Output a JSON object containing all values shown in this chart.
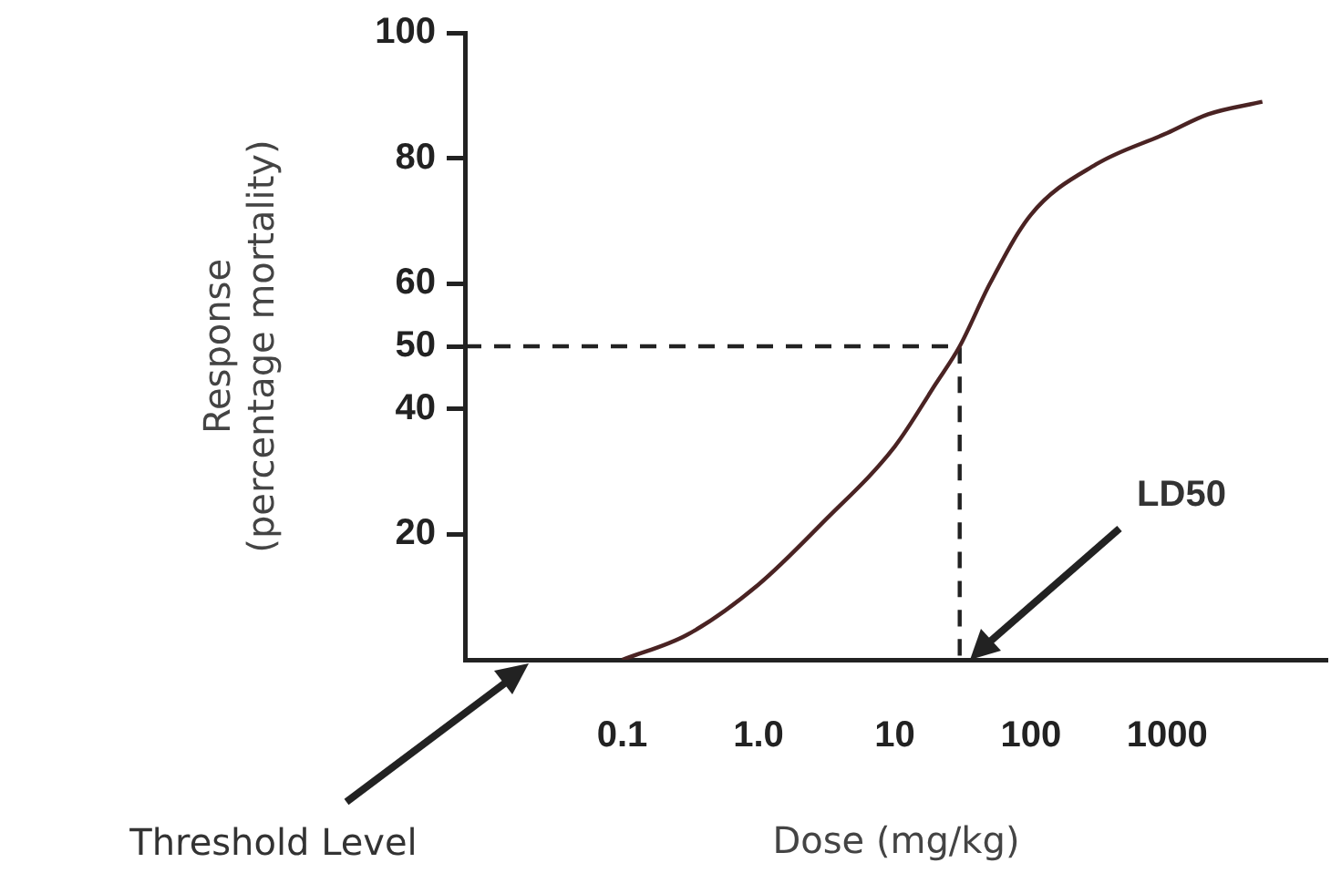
{
  "chart_data": {
    "type": "line",
    "xlabel": "Dose (mg/kg)",
    "ylabel": "Response\n(percentage mortality)",
    "log": "x",
    "grid": false,
    "legend": false,
    "marker": "none",
    "xlim": [
      0.007,
      15000
    ],
    "xticks": [
      0.1,
      {
        "value": 1,
        "label": "1.0"
      },
      10,
      100,
      1000
    ],
    "ylim": [
      0,
      100
    ],
    "yticks": [
      20,
      40,
      50,
      60,
      80,
      100
    ],
    "series": [
      {
        "color": "#4a2323",
        "line_style": "solid",
        "x": [
          0.1,
          0.3,
          1,
          3,
          10,
          20,
          30,
          50,
          100,
          300,
          1000,
          2000,
          5000
        ],
        "values": [
          0,
          4,
          12,
          22,
          34,
          44,
          50,
          60,
          71,
          79,
          84,
          87,
          89
        ]
      },
      {
        "color": "#222222",
        "line_style": "dashed",
        "x": [
          0.007,
          30,
          30
        ],
        "values": [
          50,
          50,
          0
        ]
      }
    ],
    "annotations": [
      "Threshold Level",
      "LD50"
    ]
  }
}
